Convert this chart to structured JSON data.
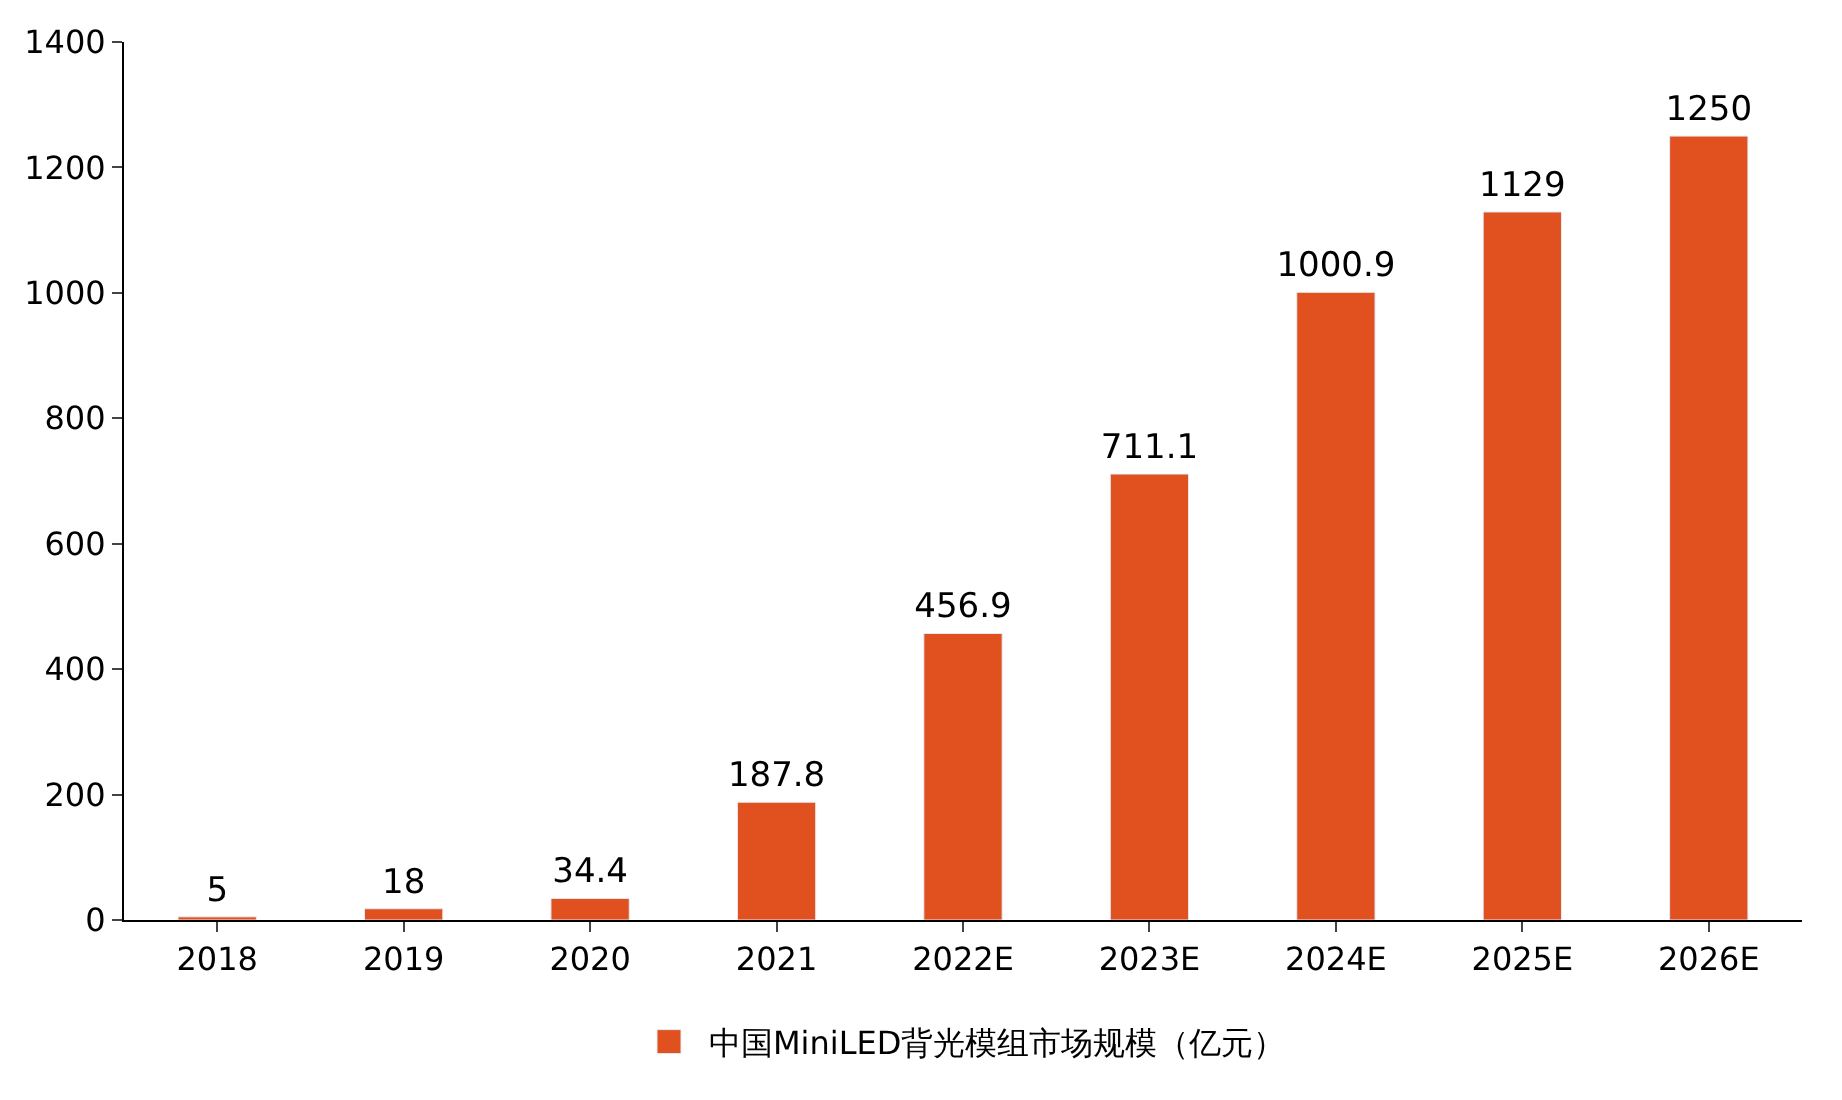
{
  "chart_data": {
    "type": "bar",
    "categories": [
      "2018",
      "2019",
      "2020",
      "2021",
      "2022E",
      "2023E",
      "2024E",
      "2025E",
      "2026E"
    ],
    "series": [
      {
        "name": "中国MiniLED背光模组市场规模（亿元）",
        "color": "#e0511f",
        "values": [
          5,
          18,
          34.4,
          187.8,
          456.9,
          711.1,
          1000.9,
          1129,
          1250
        ]
      }
    ],
    "ylim": [
      0,
      1400
    ],
    "yticks": [
      0,
      200,
      400,
      600,
      800,
      1000,
      1200,
      1400
    ],
    "legend": "bottom",
    "data_labels": true
  }
}
